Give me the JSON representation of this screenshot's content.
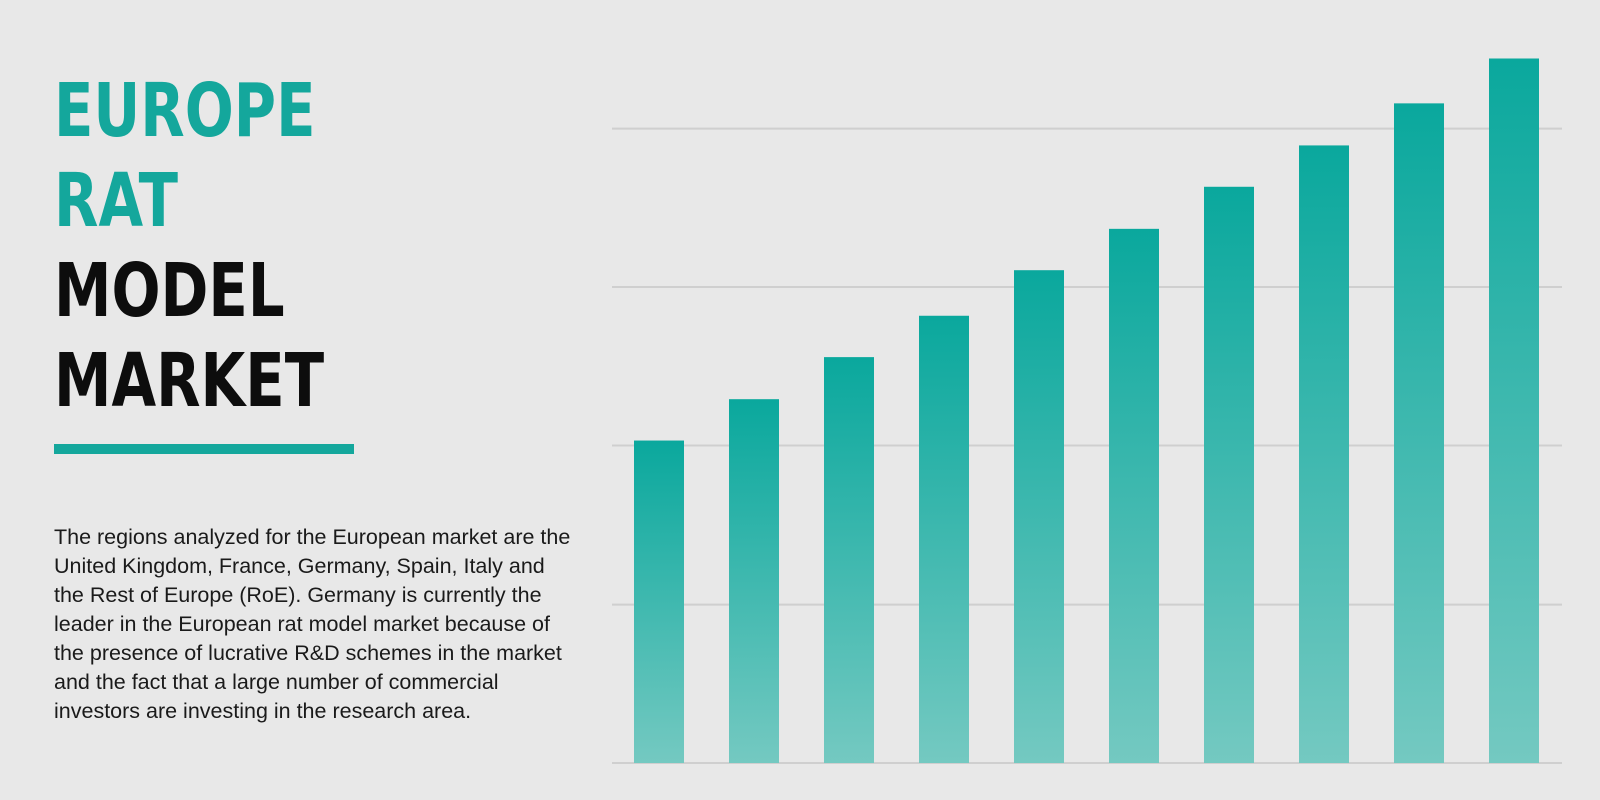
{
  "title": {
    "lines": [
      {
        "text": "EUROPE",
        "style": "accent"
      },
      {
        "text": "RAT",
        "style": "accent"
      },
      {
        "text": "MODEL",
        "style": "dark"
      },
      {
        "text": "MARKET",
        "style": "dark"
      }
    ]
  },
  "description": "The regions analyzed for the European market are the United Kingdom, France, Germany, Spain, Italy and the Rest of Europe (RoE). Germany is currently the leader in the European rat model market because of the presence of lucrative R&D schemes in the market and the fact that a large number of commercial investors are investing in the research area.",
  "colors": {
    "accent": "#14a79c",
    "text_dark": "#0d0d0d",
    "background": "#e8e8e8",
    "bar_top": "#0aa89d",
    "bar_bottom": "#74c9c1",
    "gridline": "#cfcfcf"
  },
  "chart_data": {
    "type": "bar",
    "title": "",
    "xlabel": "",
    "ylabel": "",
    "ylim": [
      0,
      100
    ],
    "grid": true,
    "gridlines": [
      0,
      22.6,
      45.3,
      67.9,
      90.5
    ],
    "values": [
      46.0,
      51.9,
      57.9,
      63.8,
      70.3,
      76.2,
      82.2,
      88.1,
      94.1,
      100.5
    ]
  }
}
